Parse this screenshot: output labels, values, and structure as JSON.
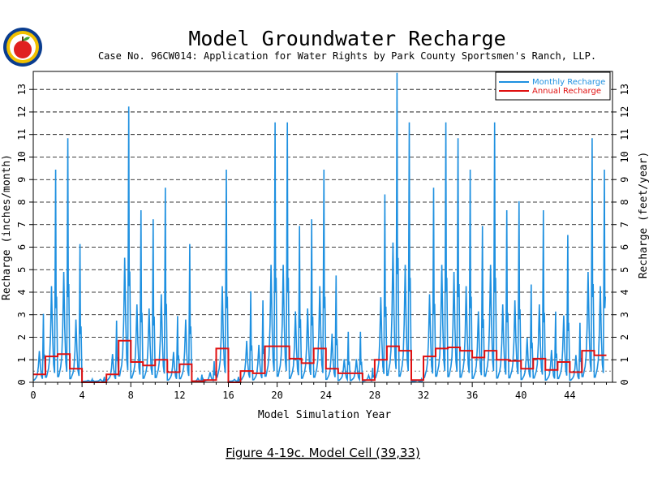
{
  "chart_data": {
    "type": "line",
    "title": "Model Groundwater Recharge",
    "subtitle": "Case No. 96CW014: Application for Water Rights by Park County Sportsmen's Ranch, LLP.",
    "xlabel": "Model Simulation Year",
    "ylabel_left": "Recharge (inches/month)",
    "ylabel_right": "Recharge (feet/year)",
    "xlim": [
      0,
      47.5
    ],
    "ylim_left": [
      0,
      13.8
    ],
    "ylim_right": [
      0,
      13.8
    ],
    "x_ticks": [
      0,
      4,
      8,
      12,
      16,
      20,
      24,
      28,
      32,
      36,
      40,
      44
    ],
    "y_ticks_left": [
      0,
      1,
      2,
      3,
      4,
      5,
      6,
      7,
      8,
      9,
      10,
      11,
      12,
      13
    ],
    "y_ticks_right": [
      0,
      1,
      2,
      3,
      4,
      5,
      6,
      7,
      8,
      9,
      10,
      11,
      12,
      13
    ],
    "grid": "horizontal dashed",
    "legend_position": "top-right",
    "caption": "Figure 4-19c.  Model Cell (39,33)",
    "series": [
      {
        "name": "Monthly Recharge",
        "color": "#1e90e0",
        "annual_peak_inches_per_month": [
          3.0,
          9.4,
          10.8,
          6.1,
          0.1,
          0.2,
          2.7,
          12.2,
          7.6,
          7.2,
          8.6,
          2.9,
          6.1,
          0.3,
          0.9,
          9.4,
          0.2,
          4.0,
          3.6,
          11.5,
          11.5,
          6.9,
          7.2,
          9.4,
          4.7,
          2.2,
          2.2,
          0.6,
          8.3,
          13.7,
          11.5,
          0.1,
          8.6,
          11.5,
          10.8,
          9.4,
          6.9,
          11.5,
          7.6,
          8.0,
          4.3,
          7.6,
          3.1,
          6.5,
          2.6,
          10.8,
          9.4
        ]
      },
      {
        "name": "Annual Recharge",
        "color": "#e01010",
        "annual_values_feet_per_year": [
          0.35,
          1.15,
          1.25,
          0.6,
          0.0,
          0.0,
          0.35,
          1.85,
          0.9,
          0.75,
          1.0,
          0.45,
          0.8,
          0.05,
          0.1,
          1.5,
          0.0,
          0.5,
          0.4,
          1.6,
          1.6,
          1.05,
          0.85,
          1.5,
          0.6,
          0.4,
          0.4,
          0.1,
          1.0,
          1.6,
          1.4,
          0.1,
          1.15,
          1.5,
          1.55,
          1.4,
          1.1,
          1.4,
          1.0,
          0.95,
          0.6,
          1.05,
          0.55,
          0.9,
          0.45,
          1.4,
          1.2
        ]
      }
    ]
  },
  "logo": {
    "colors": [
      "#0a3d8f",
      "#f0c000",
      "#e02020",
      "#3aa030"
    ]
  }
}
